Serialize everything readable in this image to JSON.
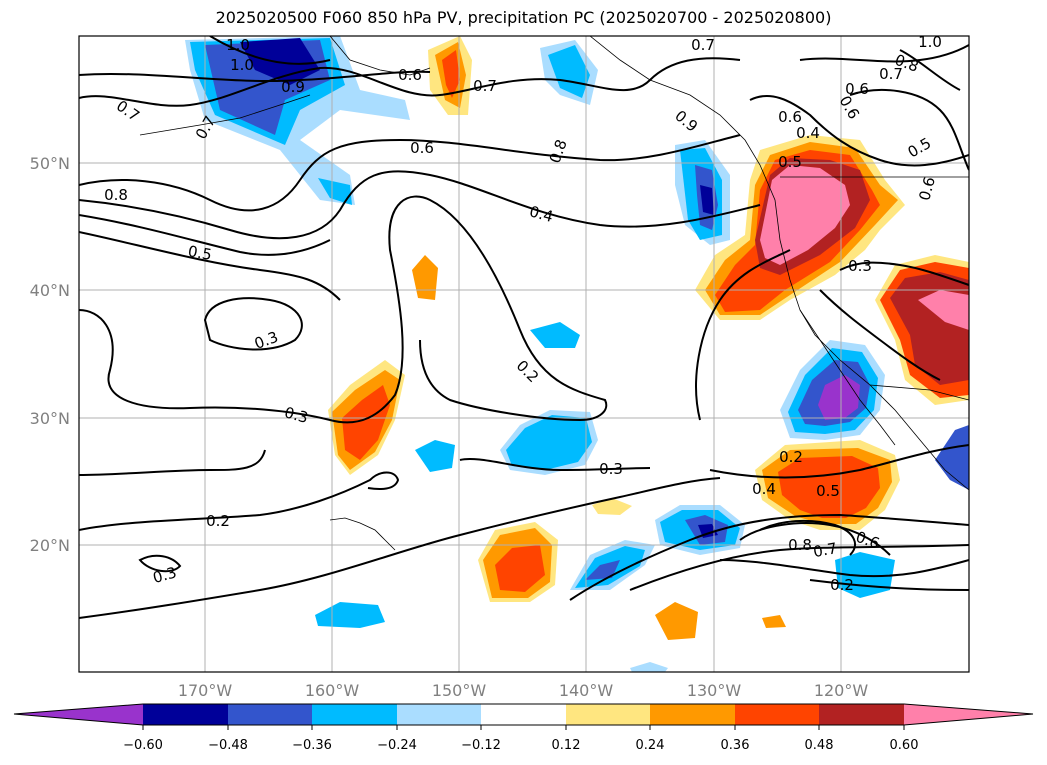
{
  "title": "2025020500 F060 850 hPa PV, precipitation PC (2025020700 - 2025020800)",
  "map": {
    "lon_ticks": [
      "170°W",
      "160°W",
      "150°W",
      "140°W",
      "130°W",
      "120°W"
    ],
    "lat_ticks": [
      "50°N",
      "40°N",
      "30°N",
      "20°N"
    ],
    "grid": true,
    "contour_labels": [
      "1.0",
      "1.0",
      "0.9",
      "0.7",
      "0.7",
      "0.8",
      "0.6",
      "0.4",
      "0.8",
      "0.7",
      "0.6",
      "0.5",
      "0.3",
      "0.2",
      "0.3",
      "0.3",
      "0.2",
      "0.3",
      "0.5",
      "0.4",
      "0.3",
      "0.2",
      "0.4",
      "0.5",
      "0.8",
      "0.7",
      "0.6",
      "0.2",
      "1.0",
      "0.8",
      "0.7",
      "0.6",
      "0.6",
      "0.5",
      "0.6",
      "0.9",
      "0.7",
      "0.6"
    ]
  },
  "colorbar": {
    "ticks": [
      "−0.60",
      "−0.48",
      "−0.36",
      "−0.24",
      "−0.12",
      "0.12",
      "0.24",
      "0.36",
      "0.48",
      "0.60"
    ],
    "colors": [
      "#9933cc",
      "#000099",
      "#3355cc",
      "#00bbff",
      "#aaddff",
      "#ffffff",
      "#ffe680",
      "#ff9900",
      "#ff4400",
      "#b22222",
      "#ff80aa"
    ]
  }
}
